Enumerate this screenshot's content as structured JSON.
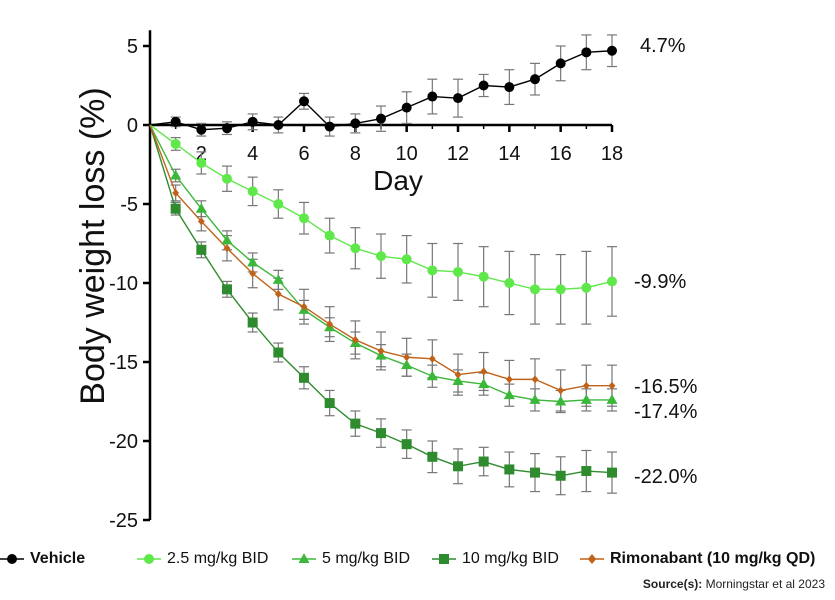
{
  "chart_data": {
    "type": "line",
    "title": "",
    "xlabel": "Day",
    "ylabel": "Body weight loss (%)",
    "xlim": [
      0,
      18
    ],
    "ylim": [
      -25,
      6
    ],
    "x_ticks": [
      2,
      4,
      6,
      8,
      10,
      12,
      14,
      16,
      18
    ],
    "y_ticks": [
      5,
      0,
      -5,
      -10,
      -15,
      -20,
      -25
    ],
    "x": [
      0,
      1,
      2,
      3,
      4,
      5,
      6,
      7,
      8,
      9,
      10,
      11,
      12,
      13,
      14,
      15,
      16,
      17,
      18
    ],
    "series": [
      {
        "name": "Vehicle",
        "color": "#000000",
        "marker": "circle",
        "end_label": "4.7%",
        "values": [
          0,
          0.2,
          -0.3,
          -0.2,
          0.2,
          0.0,
          1.5,
          -0.1,
          0.1,
          0.4,
          1.1,
          1.8,
          1.7,
          2.5,
          2.4,
          2.9,
          3.9,
          4.6,
          4.7
        ],
        "errors": [
          0,
          0.3,
          0.4,
          0.4,
          0.5,
          0.5,
          0.5,
          0.6,
          0.6,
          0.8,
          1.0,
          1.1,
          1.2,
          0.7,
          1.1,
          1.0,
          1.1,
          1.1,
          1.0
        ]
      },
      {
        "name": "2.5 mg/kg BID",
        "color": "#5fe84a",
        "marker": "circle",
        "end_label": "-9.9%",
        "values": [
          0,
          -1.2,
          -2.4,
          -3.4,
          -4.2,
          -5.0,
          -5.9,
          -7.0,
          -7.8,
          -8.3,
          -8.5,
          -9.2,
          -9.3,
          -9.6,
          -10.0,
          -10.4,
          -10.4,
          -10.3,
          -9.9
        ],
        "errors": [
          0,
          0.4,
          0.7,
          0.8,
          0.9,
          0.9,
          1.0,
          1.1,
          1.3,
          1.4,
          1.5,
          1.7,
          1.8,
          1.9,
          2.0,
          2.2,
          2.2,
          2.3,
          2.2
        ]
      },
      {
        "name": "5 mg/kg BID",
        "color": "#3bb83a",
        "marker": "triangle",
        "end_label": "-17.4%",
        "values": [
          0,
          -3.2,
          -5.3,
          -7.3,
          -8.7,
          -9.8,
          -11.7,
          -12.8,
          -13.8,
          -14.6,
          -15.2,
          -15.9,
          -16.2,
          -16.4,
          -17.1,
          -17.4,
          -17.5,
          -17.4,
          -17.4
        ],
        "errors": [
          0,
          0.4,
          0.5,
          0.6,
          0.6,
          0.6,
          0.6,
          0.6,
          0.7,
          0.7,
          0.7,
          0.7,
          0.7,
          0.7,
          0.7,
          0.7,
          0.7,
          0.7,
          0.7
        ]
      },
      {
        "name": "10 mg/kg BID",
        "color": "#2e8b2e",
        "marker": "square",
        "end_label": "-22.0%",
        "values": [
          0,
          -5.3,
          -7.9,
          -10.4,
          -12.5,
          -14.4,
          -16.0,
          -17.6,
          -18.9,
          -19.5,
          -20.2,
          -21.0,
          -21.6,
          -21.3,
          -21.8,
          -22.0,
          -22.2,
          -21.9,
          -22.0
        ],
        "errors": [
          0,
          0.4,
          0.5,
          0.5,
          0.6,
          0.6,
          0.7,
          0.8,
          0.8,
          0.9,
          0.9,
          1.0,
          1.1,
          0.9,
          1.1,
          1.2,
          1.2,
          1.3,
          1.3
        ]
      },
      {
        "name": "Rimonabant (10 mg/kg QD)",
        "color": "#c0621a",
        "marker": "diamond",
        "end_label": "-16.5%",
        "values": [
          0,
          -4.3,
          -6.1,
          -7.8,
          -9.4,
          -10.7,
          -11.5,
          -12.6,
          -13.6,
          -14.3,
          -14.7,
          -14.8,
          -15.8,
          -15.6,
          -16.1,
          -16.1,
          -16.8,
          -16.5,
          -16.5
        ],
        "errors": [
          0,
          0.5,
          0.6,
          0.8,
          0.9,
          1.0,
          1.1,
          1.1,
          1.2,
          1.2,
          1.2,
          1.2,
          1.3,
          1.2,
          1.2,
          1.3,
          1.3,
          1.3,
          1.3
        ]
      }
    ]
  },
  "legend": {
    "items": [
      {
        "label": "Vehicle",
        "color": "#000000",
        "marker": "circle",
        "bold": true
      },
      {
        "label": "2.5 mg/kg BID",
        "color": "#5fe84a",
        "marker": "circle",
        "bold": false
      },
      {
        "label": "5 mg/kg BID",
        "color": "#3bb83a",
        "marker": "triangle",
        "bold": false
      },
      {
        "label": "10 mg/kg BID",
        "color": "#2e8b2e",
        "marker": "square",
        "bold": false
      },
      {
        "label": "Rimonabant (10 mg/kg QD)",
        "color": "#c0621a",
        "marker": "diamond",
        "bold": true
      }
    ]
  },
  "source": {
    "prefix": "Source(s):",
    "text": "Morningstar et al 2023"
  }
}
